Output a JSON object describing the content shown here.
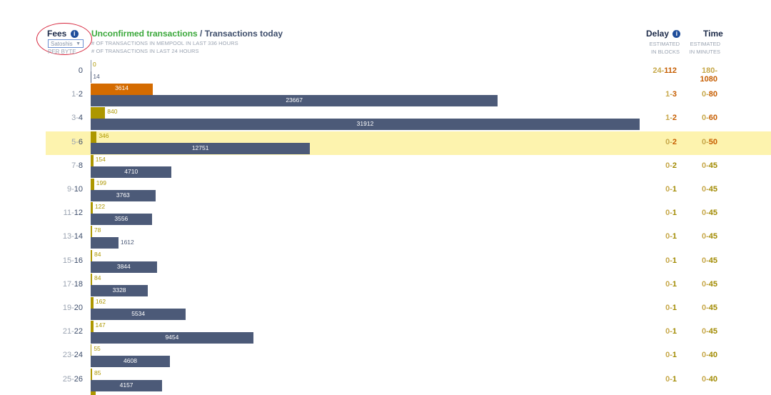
{
  "header": {
    "fees_label": "Fees",
    "info_icon": "i",
    "unit_select_value": "Satoshis",
    "unit_suffix": "PER BYTE",
    "title_unconfirmed": "Unconfirmed transactions",
    "title_separator": " / ",
    "title_today": "Transactions today",
    "sub_mempool": "# OF TRANSACTIONS IN MEMPOOL IN LAST 336 HOURS",
    "sub_24h": "# OF TRANSACTIONS IN LAST 24 HOURS",
    "delay_label": "Delay",
    "time_label": "Time",
    "delay_sub1": "ESTIMATED",
    "delay_sub2": "IN BLOCKS",
    "time_sub1": "ESTIMATED",
    "time_sub2": "IN MINUTES"
  },
  "colors": {
    "unconfirmed": "#ad9700",
    "unconfirmed_top": "#d46b00",
    "today": "#4c5a78",
    "highlight": "#fdf3ae",
    "title_green": "#3aa83a"
  },
  "chart_data": {
    "type": "bar",
    "orientation": "horizontal",
    "categories": [
      "0",
      "1-2",
      "3-4",
      "5-6",
      "7-8",
      "9-10",
      "11-12",
      "13-14",
      "15-16",
      "17-18",
      "19-20",
      "21-22",
      "23-24",
      "25-26"
    ],
    "series": [
      {
        "name": "Unconfirmed transactions",
        "values": [
          0,
          3614,
          840,
          346,
          154,
          199,
          122,
          78,
          84,
          84,
          162,
          147,
          55,
          85
        ]
      },
      {
        "name": "Transactions today",
        "values": [
          14,
          23667,
          31912,
          12751,
          4710,
          3763,
          3556,
          1612,
          3844,
          3328,
          5534,
          9454,
          4608,
          4157
        ]
      }
    ],
    "xlim": [
      0,
      31912
    ]
  },
  "rows": [
    {
      "fee_lo": "",
      "fee_hi": "0",
      "delay_lo": "24-",
      "delay_hi": "112",
      "time_lo": "180-",
      "time_hi": "1080",
      "accent": "orange",
      "highlight": false
    },
    {
      "fee_lo": "1-",
      "fee_hi": "2",
      "delay_lo": "1-",
      "delay_hi": "3",
      "time_lo": "0-",
      "time_hi": "80",
      "accent": "orange",
      "highlight": false
    },
    {
      "fee_lo": "3-",
      "fee_hi": "4",
      "delay_lo": "1-",
      "delay_hi": "2",
      "time_lo": "0-",
      "time_hi": "60",
      "accent": "orange",
      "highlight": false
    },
    {
      "fee_lo": "5-",
      "fee_hi": "6",
      "delay_lo": "0-",
      "delay_hi": "2",
      "time_lo": "0-",
      "time_hi": "50",
      "accent": "orange",
      "highlight": true
    },
    {
      "fee_lo": "7-",
      "fee_hi": "8",
      "delay_lo": "0-",
      "delay_hi": "2",
      "time_lo": "0-",
      "time_hi": "45",
      "accent": "olive",
      "highlight": false
    },
    {
      "fee_lo": "9-",
      "fee_hi": "10",
      "delay_lo": "0-",
      "delay_hi": "1",
      "time_lo": "0-",
      "time_hi": "45",
      "accent": "olive",
      "highlight": false
    },
    {
      "fee_lo": "11-",
      "fee_hi": "12",
      "delay_lo": "0-",
      "delay_hi": "1",
      "time_lo": "0-",
      "time_hi": "45",
      "accent": "olive",
      "highlight": false
    },
    {
      "fee_lo": "13-",
      "fee_hi": "14",
      "delay_lo": "0-",
      "delay_hi": "1",
      "time_lo": "0-",
      "time_hi": "45",
      "accent": "olive",
      "highlight": false
    },
    {
      "fee_lo": "15-",
      "fee_hi": "16",
      "delay_lo": "0-",
      "delay_hi": "1",
      "time_lo": "0-",
      "time_hi": "45",
      "accent": "olive",
      "highlight": false
    },
    {
      "fee_lo": "17-",
      "fee_hi": "18",
      "delay_lo": "0-",
      "delay_hi": "1",
      "time_lo": "0-",
      "time_hi": "45",
      "accent": "olive",
      "highlight": false
    },
    {
      "fee_lo": "19-",
      "fee_hi": "20",
      "delay_lo": "0-",
      "delay_hi": "1",
      "time_lo": "0-",
      "time_hi": "45",
      "accent": "olive",
      "highlight": false
    },
    {
      "fee_lo": "21-",
      "fee_hi": "22",
      "delay_lo": "0-",
      "delay_hi": "1",
      "time_lo": "0-",
      "time_hi": "45",
      "accent": "olive",
      "highlight": false
    },
    {
      "fee_lo": "23-",
      "fee_hi": "24",
      "delay_lo": "0-",
      "delay_hi": "1",
      "time_lo": "0-",
      "time_hi": "40",
      "accent": "olive",
      "highlight": false
    },
    {
      "fee_lo": "25-",
      "fee_hi": "26",
      "delay_lo": "0-",
      "delay_hi": "1",
      "time_lo": "0-",
      "time_hi": "40",
      "accent": "olive",
      "highlight": false
    }
  ]
}
